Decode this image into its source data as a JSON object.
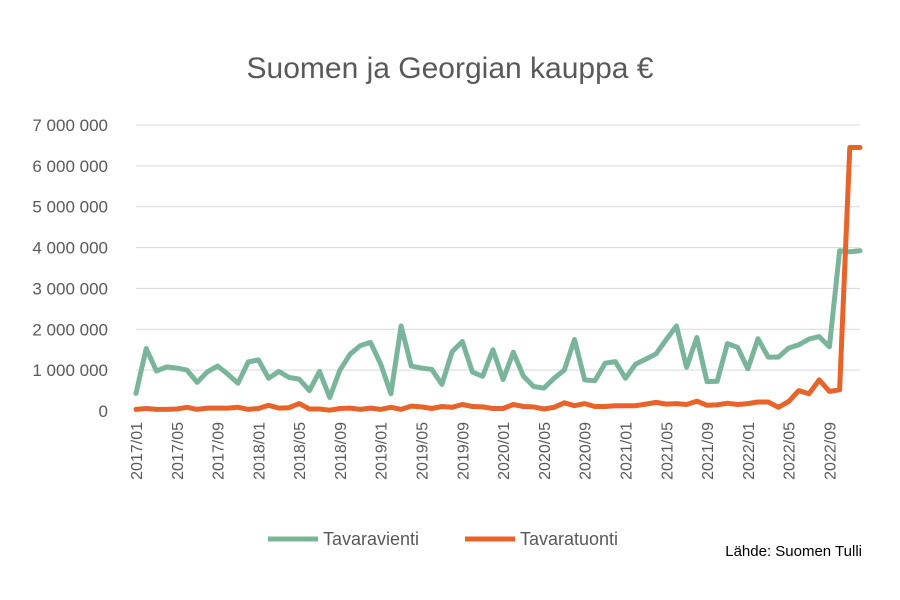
{
  "chart_data": {
    "type": "line",
    "title": "Suomen ja Georgian kauppa €",
    "source": "Lähde: Suomen Tulli",
    "xlabel": "",
    "ylabel": "",
    "ylim": [
      0,
      7000000
    ],
    "yticks": [
      {
        "value": 0,
        "label": "0"
      },
      {
        "value": 1000000,
        "label": "1 000 000"
      },
      {
        "value": 2000000,
        "label": "2 000 000"
      },
      {
        "value": 3000000,
        "label": "3 000 000"
      },
      {
        "value": 4000000,
        "label": "4 000 000"
      },
      {
        "value": 5000000,
        "label": "5 000 000"
      },
      {
        "value": 6000000,
        "label": "6 000 000"
      },
      {
        "value": 7000000,
        "label": "7 000 000"
      }
    ],
    "grid": true,
    "legend_position": "bottom",
    "x": [
      "2017/01",
      "2017/02",
      "2017/03",
      "2017/04",
      "2017/05",
      "2017/06",
      "2017/07",
      "2017/08",
      "2017/09",
      "2017/10",
      "2017/11",
      "2017/12",
      "2018/01",
      "2018/02",
      "2018/03",
      "2018/04",
      "2018/05",
      "2018/06",
      "2018/07",
      "2018/08",
      "2018/09",
      "2018/10",
      "2018/11",
      "2018/12",
      "2019/01",
      "2019/02",
      "2019/03",
      "2019/04",
      "2019/05",
      "2019/06",
      "2019/07",
      "2019/08",
      "2019/09",
      "2019/10",
      "2019/11",
      "2019/12",
      "2020/01",
      "2020/02",
      "2020/03",
      "2020/04",
      "2020/05",
      "2020/06",
      "2020/07",
      "2020/08",
      "2020/09",
      "2020/10",
      "2020/11",
      "2020/12",
      "2021/01",
      "2021/02",
      "2021/03",
      "2021/04",
      "2021/05",
      "2021/06",
      "2021/07",
      "2021/08",
      "2021/09",
      "2021/10",
      "2021/11",
      "2021/12",
      "2022/01",
      "2022/02",
      "2022/03",
      "2022/04",
      "2022/05",
      "2022/06",
      "2022/07",
      "2022/08",
      "2022/09",
      "2022/10",
      "2022/11",
      "2022/12"
    ],
    "x_tick_labels": [
      "2017/01",
      "2017/05",
      "2017/09",
      "2018/01",
      "2018/05",
      "2018/09",
      "2019/01",
      "2019/05",
      "2019/09",
      "2020/01",
      "2020/05",
      "2020/09",
      "2021/01",
      "2021/05",
      "2021/09",
      "2022/01",
      "2022/05",
      "2022/09"
    ],
    "series": [
      {
        "name": "Tavaravienti",
        "color": "#7ab59b",
        "values": [
          430000,
          1530000,
          980000,
          1080000,
          1050000,
          1000000,
          700000,
          960000,
          1100000,
          900000,
          680000,
          1200000,
          1250000,
          800000,
          970000,
          820000,
          780000,
          500000,
          970000,
          330000,
          1000000,
          1390000,
          1600000,
          1680000,
          1150000,
          420000,
          2080000,
          1100000,
          1050000,
          1020000,
          650000,
          1450000,
          1700000,
          950000,
          850000,
          1500000,
          770000,
          1440000,
          850000,
          600000,
          560000,
          800000,
          1000000,
          1750000,
          760000,
          740000,
          1170000,
          1210000,
          800000,
          1150000,
          1270000,
          1400000,
          1750000,
          2080000,
          1070000,
          1800000,
          720000,
          730000,
          1650000,
          1560000,
          1030000,
          1770000,
          1320000,
          1320000,
          1540000,
          1620000,
          1760000,
          1820000,
          1570000,
          3920000,
          3900000,
          3920000
        ]
      },
      {
        "name": "Tavaratuonti",
        "color": "#e8632a",
        "values": [
          40000,
          60000,
          40000,
          40000,
          50000,
          90000,
          40000,
          70000,
          70000,
          70000,
          90000,
          40000,
          60000,
          140000,
          70000,
          80000,
          180000,
          50000,
          50000,
          20000,
          60000,
          70000,
          40000,
          70000,
          40000,
          90000,
          40000,
          120000,
          100000,
          60000,
          110000,
          90000,
          160000,
          110000,
          100000,
          60000,
          60000,
          160000,
          110000,
          100000,
          50000,
          90000,
          200000,
          130000,
          180000,
          110000,
          110000,
          130000,
          130000,
          130000,
          170000,
          210000,
          170000,
          180000,
          160000,
          240000,
          140000,
          150000,
          190000,
          160000,
          180000,
          220000,
          220000,
          90000,
          230000,
          500000,
          420000,
          760000,
          480000,
          520000,
          6450000,
          6450000
        ]
      }
    ]
  }
}
